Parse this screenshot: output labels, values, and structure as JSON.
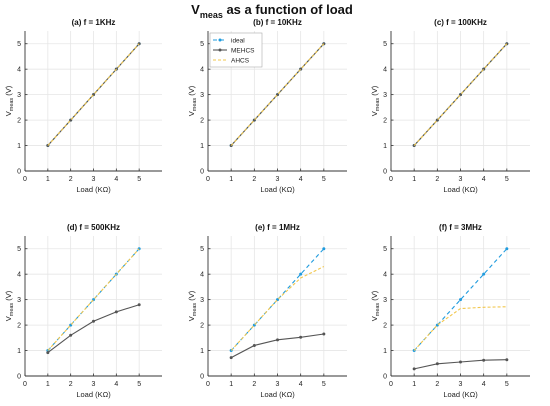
{
  "figure": {
    "title_main": "V",
    "title_sub": "meas",
    "title_rest": " as a function of load"
  },
  "colors": {
    "ideal": "#1f9bde",
    "mehcs": "#555555",
    "ahcs": "#f2c74d",
    "axis": "#333333",
    "grid": "#e6e6e6"
  },
  "legend": {
    "position": "top-left",
    "panel_index": 1
  },
  "chart_data": [
    {
      "type": "line",
      "title": "(a) f = 1KHz",
      "xlabel": "Load (KΩ)",
      "ylabel_main": "V",
      "ylabel_sub": "meas",
      "ylabel_rest": " (V)",
      "xlim": [
        0,
        6
      ],
      "ylim": [
        0,
        5.5
      ],
      "xticks": [
        0,
        1,
        2,
        3,
        4,
        5
      ],
      "yticks": [
        0,
        1,
        2,
        3,
        4,
        5
      ],
      "grid": true,
      "x": [
        1,
        2,
        3,
        4,
        5
      ],
      "series": [
        {
          "name": "ideal",
          "values": [
            1,
            2,
            3,
            4,
            5
          ]
        },
        {
          "name": "MEHCS",
          "values": [
            1,
            2,
            3,
            4,
            5
          ]
        },
        {
          "name": "AHCS",
          "values": [
            1,
            2,
            3,
            4,
            5
          ]
        }
      ]
    },
    {
      "type": "line",
      "title": "(b) f = 10KHz",
      "xlabel": "Load (KΩ)",
      "ylabel_main": "V",
      "ylabel_sub": "meas",
      "ylabel_rest": " (V)",
      "xlim": [
        0,
        6
      ],
      "ylim": [
        0,
        5.5
      ],
      "xticks": [
        0,
        1,
        2,
        3,
        4,
        5
      ],
      "yticks": [
        0,
        1,
        2,
        3,
        4,
        5
      ],
      "grid": true,
      "x": [
        1,
        2,
        3,
        4,
        5
      ],
      "series": [
        {
          "name": "ideal",
          "values": [
            1,
            2,
            3,
            4,
            5
          ]
        },
        {
          "name": "MEHCS",
          "values": [
            1,
            2,
            3,
            4,
            5
          ]
        },
        {
          "name": "AHCS",
          "values": [
            1,
            2,
            3,
            4,
            5
          ]
        }
      ]
    },
    {
      "type": "line",
      "title": "(c) f = 100KHz",
      "xlabel": "Load (KΩ)",
      "ylabel_main": "V",
      "ylabel_sub": "meas",
      "ylabel_rest": " (V)",
      "xlim": [
        0,
        6
      ],
      "ylim": [
        0,
        5.5
      ],
      "xticks": [
        0,
        1,
        2,
        3,
        4,
        5
      ],
      "yticks": [
        0,
        1,
        2,
        3,
        4,
        5
      ],
      "grid": true,
      "x": [
        1,
        2,
        3,
        4,
        5
      ],
      "series": [
        {
          "name": "ideal",
          "values": [
            1,
            2,
            3,
            4,
            5
          ]
        },
        {
          "name": "MEHCS",
          "values": [
            1,
            2,
            3,
            4,
            5
          ]
        },
        {
          "name": "AHCS",
          "values": [
            1,
            2,
            3,
            4,
            5
          ]
        }
      ]
    },
    {
      "type": "line",
      "title": "(d) f = 500KHz",
      "xlabel": "Load (KΩ)",
      "ylabel_main": "V",
      "ylabel_sub": "meas",
      "ylabel_rest": " (V)",
      "xlim": [
        0,
        6
      ],
      "ylim": [
        0,
        5.5
      ],
      "xticks": [
        0,
        1,
        2,
        3,
        4,
        5
      ],
      "yticks": [
        0,
        1,
        2,
        3,
        4,
        5
      ],
      "grid": true,
      "x": [
        1,
        2,
        3,
        4,
        5
      ],
      "series": [
        {
          "name": "ideal",
          "values": [
            1,
            2,
            3,
            4,
            5
          ]
        },
        {
          "name": "MEHCS",
          "values": [
            0.92,
            1.6,
            2.15,
            2.52,
            2.8
          ]
        },
        {
          "name": "AHCS",
          "values": [
            1,
            2,
            3,
            4,
            5
          ]
        }
      ]
    },
    {
      "type": "line",
      "title": "(e) f = 1MHz",
      "xlabel": "Load (KΩ)",
      "ylabel_main": "V",
      "ylabel_sub": "meas",
      "ylabel_rest": " (V)",
      "xlim": [
        0,
        6
      ],
      "ylim": [
        0,
        5.5
      ],
      "xticks": [
        0,
        1,
        2,
        3,
        4,
        5
      ],
      "yticks": [
        0,
        1,
        2,
        3,
        4,
        5
      ],
      "grid": true,
      "x": [
        1,
        2,
        3,
        4,
        5
      ],
      "series": [
        {
          "name": "ideal",
          "values": [
            1,
            2,
            3,
            4,
            5
          ]
        },
        {
          "name": "MEHCS",
          "values": [
            0.72,
            1.2,
            1.42,
            1.52,
            1.65
          ]
        },
        {
          "name": "AHCS",
          "values": [
            1,
            2,
            3,
            3.85,
            4.3
          ]
        }
      ]
    },
    {
      "type": "line",
      "title": "(f) f = 3MHz",
      "xlabel": "Load (KΩ)",
      "ylabel_main": "V",
      "ylabel_sub": "meas",
      "ylabel_rest": " (V)",
      "xlim": [
        0,
        6
      ],
      "ylim": [
        0,
        5.5
      ],
      "xticks": [
        0,
        1,
        2,
        3,
        4,
        5
      ],
      "yticks": [
        0,
        1,
        2,
        3,
        4,
        5
      ],
      "grid": true,
      "x": [
        1,
        2,
        3,
        4,
        5
      ],
      "series": [
        {
          "name": "ideal",
          "values": [
            1,
            2,
            3,
            4,
            5
          ]
        },
        {
          "name": "MEHCS",
          "values": [
            0.28,
            0.48,
            0.55,
            0.62,
            0.64
          ]
        },
        {
          "name": "AHCS",
          "values": [
            1,
            2,
            2.65,
            2.7,
            2.72
          ]
        }
      ]
    }
  ]
}
